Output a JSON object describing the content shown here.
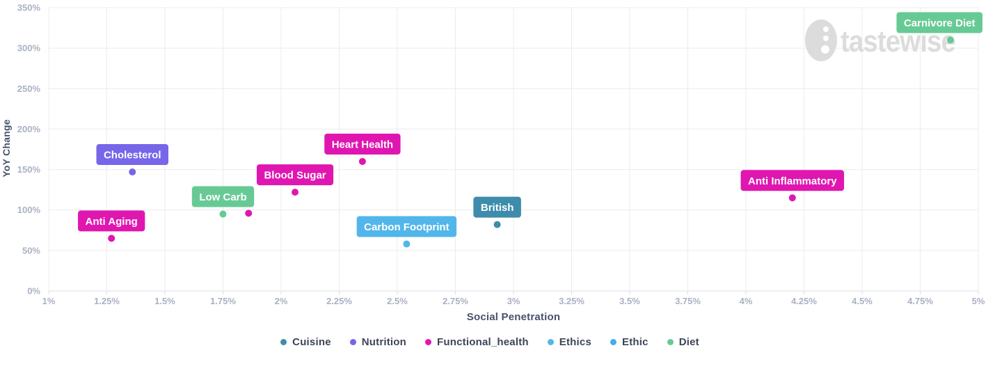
{
  "chart_data": {
    "type": "scatter",
    "title": "",
    "xlabel": "Social Penetration",
    "ylabel": "YoY Change",
    "xlim": [
      1,
      5
    ],
    "ylim": [
      0,
      350
    ],
    "grid": true,
    "legend_position": "bottom",
    "x_ticks": [
      {
        "v": 1,
        "label": "1%"
      },
      {
        "v": 1.25,
        "label": "1.25%"
      },
      {
        "v": 1.5,
        "label": "1.5%"
      },
      {
        "v": 1.75,
        "label": "1.75%"
      },
      {
        "v": 2,
        "label": "2%"
      },
      {
        "v": 2.25,
        "label": "2.25%"
      },
      {
        "v": 2.5,
        "label": "2.5%"
      },
      {
        "v": 2.75,
        "label": "2.75%"
      },
      {
        "v": 3,
        "label": "3%"
      },
      {
        "v": 3.25,
        "label": "3.25%"
      },
      {
        "v": 3.5,
        "label": "3.5%"
      },
      {
        "v": 3.75,
        "label": "3.75%"
      },
      {
        "v": 4,
        "label": "4%"
      },
      {
        "v": 4.25,
        "label": "4.25%"
      },
      {
        "v": 4.5,
        "label": "4.5%"
      },
      {
        "v": 4.75,
        "label": "4.75%"
      },
      {
        "v": 5,
        "label": "5%"
      }
    ],
    "y_ticks": [
      {
        "v": 0,
        "label": "0%"
      },
      {
        "v": 50,
        "label": "50%"
      },
      {
        "v": 100,
        "label": "100%"
      },
      {
        "v": 150,
        "label": "150%"
      },
      {
        "v": 200,
        "label": "200%"
      },
      {
        "v": 250,
        "label": "250%"
      },
      {
        "v": 300,
        "label": "300%"
      },
      {
        "v": 350,
        "label": "350%"
      }
    ],
    "category_colors": {
      "Cuisine": "#3e8cab",
      "Nutrition": "#7766e9",
      "Functional_health": "#e016b1",
      "Ethics": "#52b6ea",
      "Ethic": "#45ace4",
      "Diet": "#67ca95"
    },
    "points": [
      {
        "label": "Anti Aging",
        "category": "Functional_health",
        "x": 1.27,
        "y": 65
      },
      {
        "label": "Cholesterol",
        "category": "Nutrition",
        "x": 1.36,
        "y": 147
      },
      {
        "label": "Low Carb",
        "category": "Diet",
        "x": 1.75,
        "y": 95
      },
      {
        "label": "",
        "category": "Functional_health",
        "x": 1.86,
        "y": 96
      },
      {
        "label": "Blood Sugar",
        "category": "Functional_health",
        "x": 2.06,
        "y": 122
      },
      {
        "label": "Heart Health",
        "category": "Functional_health",
        "x": 2.35,
        "y": 160
      },
      {
        "label": "Carbon Footprint",
        "category": "Ethics",
        "x": 2.54,
        "y": 58
      },
      {
        "label": "British",
        "category": "Cuisine",
        "x": 2.93,
        "y": 82
      },
      {
        "label": "Anti Inflammatory",
        "category": "Functional_health",
        "x": 4.2,
        "y": 115
      },
      {
        "label": "Carnivore Diet",
        "category": "Diet",
        "x": 4.88,
        "y": 310
      }
    ],
    "legend": [
      {
        "label": "Cuisine",
        "color": "#3e8cab"
      },
      {
        "label": "Nutrition",
        "color": "#7766e9"
      },
      {
        "label": "Functional_health",
        "color": "#e016b1"
      },
      {
        "label": "Ethics",
        "color": "#52b6ea"
      },
      {
        "label": "Ethic",
        "color": "#45ace4"
      },
      {
        "label": "Diet",
        "color": "#67ca95"
      }
    ]
  },
  "watermark": {
    "text": "tastewise",
    "color": "#d9d9d9"
  },
  "axis_colors": {
    "grid": "#ececec",
    "axis_line": "#dcdfe5",
    "tick_text": "#a9b1c2"
  }
}
